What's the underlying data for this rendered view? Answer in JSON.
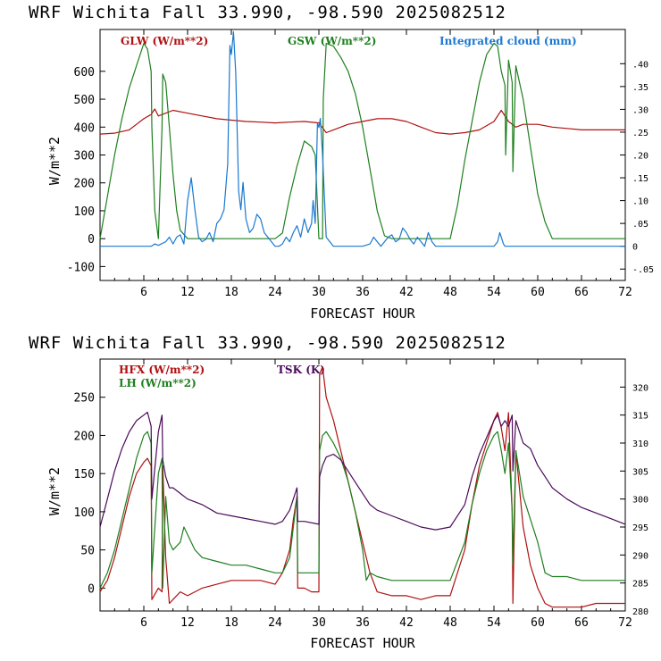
{
  "top": {
    "title": "WRF   Wichita Fall  33.990, -98.590  2025082512",
    "ylabel": "W/m**2",
    "xlabel": "FORECAST HOUR",
    "legend": {
      "glw": "GLW (W/m**2)",
      "gsw": "GSW (W/m**2)",
      "cloud": "Integrated cloud (mm)"
    }
  },
  "bottom": {
    "title": "WRF   Wichita Fall  33.990, -98.590  2025082512",
    "ylabel": "W/m**2",
    "xlabel": "FORECAST HOUR",
    "legend": {
      "hfx": "HFX (W/m**2)",
      "lh": "LH  (W/m**2)",
      "tsk": "TSK (K)"
    }
  },
  "colors": {
    "glw": "#b01010",
    "gsw": "#1e7f1e",
    "cloud": "#1a78d0",
    "hfx": "#b01010",
    "lh": "#1e7f1e",
    "tsk": "#4a0a5a"
  },
  "chart_data": [
    {
      "type": "line",
      "xlim": [
        0,
        72
      ],
      "ylim": [
        -150,
        750
      ],
      "y2lim": [
        -0.075,
        0.475
      ],
      "x_ticks": [
        "6",
        "12",
        "18",
        "24",
        "30",
        "36",
        "42",
        "48",
        "54",
        "60",
        "66",
        "72"
      ],
      "y_ticks": [
        "-100",
        "0",
        "100",
        "200",
        "300",
        "400",
        "500",
        "600"
      ],
      "y2_ticks": [
        "-.05",
        "0",
        ".05",
        ".10",
        ".15",
        ".20",
        ".25",
        ".30",
        ".35",
        ".40"
      ],
      "series": [
        {
          "key": "glw",
          "name": "GLW (W/m**2)",
          "axis": "left",
          "x": [
            0,
            2,
            4,
            5,
            6,
            7,
            7.5,
            8,
            9,
            10,
            12,
            14,
            16,
            18,
            20,
            22,
            24,
            26,
            28,
            30,
            31,
            32,
            34,
            36,
            38,
            40,
            42,
            44,
            46,
            48,
            50,
            52,
            54,
            55,
            56,
            57,
            58,
            60,
            62,
            64,
            66,
            68,
            70,
            72
          ],
          "y": [
            375,
            378,
            390,
            410,
            430,
            445,
            465,
            440,
            450,
            460,
            450,
            440,
            430,
            425,
            420,
            418,
            415,
            418,
            420,
            415,
            380,
            390,
            410,
            420,
            430,
            430,
            420,
            400,
            380,
            375,
            380,
            390,
            420,
            460,
            420,
            400,
            410,
            410,
            400,
            395,
            390,
            390,
            390,
            390
          ]
        },
        {
          "key": "gsw",
          "name": "GSW (W/m**2)",
          "axis": "left",
          "x": [
            0,
            1,
            2,
            3,
            4,
            5,
            6,
            6.5,
            7,
            7.1,
            7.5,
            8,
            8.5,
            8.6,
            9,
            9.5,
            10,
            10.5,
            11,
            12,
            13,
            14,
            16,
            18,
            20,
            22,
            24,
            25,
            26,
            27,
            28,
            29,
            29.5,
            30,
            30.5,
            30.6,
            31,
            32,
            33,
            34,
            35,
            36,
            37,
            38,
            39,
            40,
            41,
            42,
            43,
            44,
            46,
            48,
            49,
            50,
            51,
            52,
            53,
            54,
            54.5,
            55,
            55.5,
            55.6,
            56,
            56.5,
            56.6,
            57,
            58,
            59,
            60,
            61,
            62,
            64,
            66,
            68,
            70,
            72
          ],
          "y": [
            0,
            150,
            300,
            430,
            540,
            620,
            700,
            680,
            600,
            400,
            100,
            0,
            400,
            590,
            560,
            400,
            230,
            100,
            30,
            0,
            0,
            0,
            0,
            0,
            0,
            0,
            0,
            20,
            150,
            260,
            350,
            330,
            300,
            0,
            0,
            500,
            700,
            690,
            650,
            600,
            520,
            400,
            250,
            100,
            10,
            0,
            0,
            0,
            0,
            0,
            0,
            0,
            120,
            280,
            420,
            560,
            660,
            700,
            690,
            600,
            550,
            300,
            640,
            560,
            240,
            620,
            500,
            330,
            160,
            60,
            0,
            0,
            0,
            0,
            0,
            0
          ]
        },
        {
          "key": "cloud",
          "name": "Integrated cloud (mm)",
          "axis": "right",
          "x": [
            0,
            7,
            7.5,
            8,
            9,
            9.5,
            10,
            10.5,
            11,
            11.5,
            12,
            12.5,
            13,
            13.5,
            14,
            14.5,
            15,
            15.5,
            16,
            16.5,
            17,
            17.5,
            17.8,
            18,
            18.3,
            18.6,
            19,
            19.3,
            19.6,
            20,
            20.5,
            21,
            21.5,
            22,
            22.5,
            23,
            23.5,
            24,
            24.5,
            25,
            25.5,
            26,
            26.5,
            27,
            27.5,
            28,
            28.5,
            29,
            29.2,
            29.5,
            29.8,
            30,
            30.2,
            30.5,
            31,
            32,
            36,
            37,
            37.5,
            38,
            38.5,
            39,
            39.5,
            40,
            40.5,
            41,
            41.5,
            42,
            42.5,
            43,
            43.5,
            44,
            44.5,
            45,
            45.5,
            46,
            50,
            54,
            54.5,
            54.8,
            55,
            55.3,
            55.5,
            56,
            72
          ],
          "y": [
            0,
            0,
            0.005,
            0.002,
            0.01,
            0.02,
            0.005,
            0.02,
            0.025,
            0.005,
            0.1,
            0.15,
            0.08,
            0.02,
            0.01,
            0.015,
            0.03,
            0.01,
            0.05,
            0.06,
            0.08,
            0.18,
            0.44,
            0.42,
            0.47,
            0.38,
            0.12,
            0.08,
            0.14,
            0.06,
            0.03,
            0.04,
            0.07,
            0.06,
            0.03,
            0.02,
            0.01,
            0,
            0,
            0.005,
            0.02,
            0.01,
            0.03,
            0.045,
            0.02,
            0.06,
            0.03,
            0.05,
            0.1,
            0.05,
            0.27,
            0.26,
            0.28,
            0.2,
            0.02,
            0,
            0,
            0.005,
            0.02,
            0.01,
            0,
            0.01,
            0.02,
            0.025,
            0.01,
            0.015,
            0.04,
            0.03,
            0.015,
            0.005,
            0.02,
            0.01,
            0,
            0.03,
            0.01,
            0,
            0,
            0,
            0.01,
            0.03,
            0.02,
            0.005,
            0,
            0,
            0
          ]
        }
      ]
    },
    {
      "type": "line",
      "xlim": [
        0,
        72
      ],
      "ylim": [
        -30,
        300
      ],
      "y2lim": [
        280,
        325
      ],
      "x_ticks": [
        "6",
        "12",
        "18",
        "24",
        "30",
        "36",
        "42",
        "48",
        "54",
        "60",
        "66",
        "72"
      ],
      "y_ticks": [
        "0",
        "50",
        "100",
        "150",
        "200",
        "250"
      ],
      "y2_ticks": [
        "280",
        "285",
        "290",
        "295",
        "300",
        "305",
        "310",
        "315",
        "320"
      ],
      "series": [
        {
          "key": "hfx",
          "name": "HFX (W/m**2)",
          "axis": "left",
          "x": [
            0,
            1,
            2,
            3,
            4,
            5,
            6,
            6.5,
            7,
            7.1,
            8,
            8.5,
            8.6,
            9,
            9.5,
            10,
            11,
            12,
            14,
            16,
            18,
            20,
            22,
            24,
            25,
            26,
            26.5,
            27,
            27.1,
            28,
            29,
            30,
            30.1,
            30.5,
            31,
            32,
            33,
            34,
            35,
            36,
            37,
            38,
            40,
            42,
            44,
            46,
            48,
            50,
            51,
            52,
            53,
            54,
            54.5,
            55,
            55.5,
            56,
            56.5,
            56.6,
            57,
            58,
            59,
            60,
            61,
            62,
            64,
            66,
            68,
            70,
            72
          ],
          "y": [
            -5,
            10,
            40,
            80,
            120,
            150,
            165,
            170,
            160,
            -15,
            0,
            -5,
            160,
            40,
            -20,
            -15,
            -5,
            -10,
            0,
            5,
            10,
            10,
            10,
            5,
            20,
            50,
            90,
            120,
            0,
            0,
            -5,
            -5,
            280,
            290,
            250,
            220,
            180,
            140,
            100,
            60,
            20,
            -5,
            -10,
            -10,
            -15,
            -10,
            -10,
            50,
            110,
            160,
            190,
            220,
            230,
            210,
            180,
            230,
            100,
            -20,
            180,
            80,
            30,
            0,
            -20,
            -25,
            -25,
            -25,
            -20,
            -20,
            -20
          ]
        },
        {
          "key": "lh",
          "name": "LH  (W/m**2)",
          "axis": "left",
          "x": [
            0,
            1,
            2,
            3,
            4,
            5,
            6,
            6.5,
            7,
            7.1,
            8,
            8.5,
            8.6,
            9,
            9.5,
            10,
            11,
            11.5,
            12,
            13,
            14,
            16,
            18,
            20,
            22,
            24,
            25,
            26,
            26.5,
            27,
            27.1,
            28,
            30,
            30.1,
            30.5,
            31,
            32,
            33,
            34,
            35,
            36,
            36.5,
            37,
            38,
            40,
            42,
            44,
            46,
            48,
            50,
            51,
            52,
            53,
            54,
            54.5,
            55,
            55.5,
            56,
            56.5,
            56.6,
            57,
            58,
            60,
            61,
            62,
            64,
            66,
            68,
            70,
            72
          ],
          "y": [
            0,
            20,
            50,
            90,
            130,
            170,
            200,
            205,
            190,
            20,
            150,
            170,
            0,
            120,
            60,
            50,
            60,
            80,
            70,
            50,
            40,
            35,
            30,
            30,
            25,
            20,
            20,
            40,
            80,
            120,
            20,
            20,
            20,
            180,
            200,
            205,
            190,
            170,
            140,
            100,
            50,
            10,
            20,
            15,
            10,
            10,
            10,
            10,
            10,
            60,
            110,
            150,
            180,
            200,
            205,
            180,
            150,
            190,
            100,
            30,
            180,
            120,
            60,
            20,
            15,
            15,
            10,
            10,
            10,
            10
          ]
        },
        {
          "key": "tsk",
          "name": "TSK (K)",
          "axis": "right",
          "x": [
            0,
            1,
            2,
            3,
            4,
            5,
            6,
            6.5,
            7,
            7.1,
            8,
            8.5,
            8.6,
            9,
            9.5,
            10,
            11,
            12,
            14,
            16,
            18,
            20,
            22,
            24,
            25,
            26,
            26.5,
            27,
            27.1,
            28,
            30,
            30.1,
            30.5,
            31,
            32,
            33,
            34,
            35,
            36,
            37,
            38,
            40,
            42,
            44,
            46,
            48,
            50,
            51,
            52,
            53,
            54,
            54.5,
            55,
            55.5,
            56,
            56.5,
            56.6,
            57,
            58,
            59,
            60,
            61,
            62,
            64,
            66,
            68,
            70,
            72
          ],
          "y": [
            295,
            300,
            305,
            309,
            312,
            314,
            315,
            315.5,
            313,
            300,
            312,
            315,
            307,
            304,
            302,
            302,
            301,
            300,
            299,
            297.5,
            297,
            296.5,
            296,
            295.5,
            296,
            298,
            300,
            302,
            296,
            296,
            295.5,
            304,
            306,
            307.5,
            308,
            307,
            305,
            303,
            301,
            299,
            298,
            297,
            296,
            295,
            294.5,
            295,
            299,
            304,
            308,
            311,
            314,
            315,
            313,
            314,
            313,
            315,
            305,
            314,
            310,
            309,
            306,
            304,
            302,
            300,
            298.5,
            297.5,
            296.5,
            295.5
          ]
        }
      ]
    }
  ]
}
